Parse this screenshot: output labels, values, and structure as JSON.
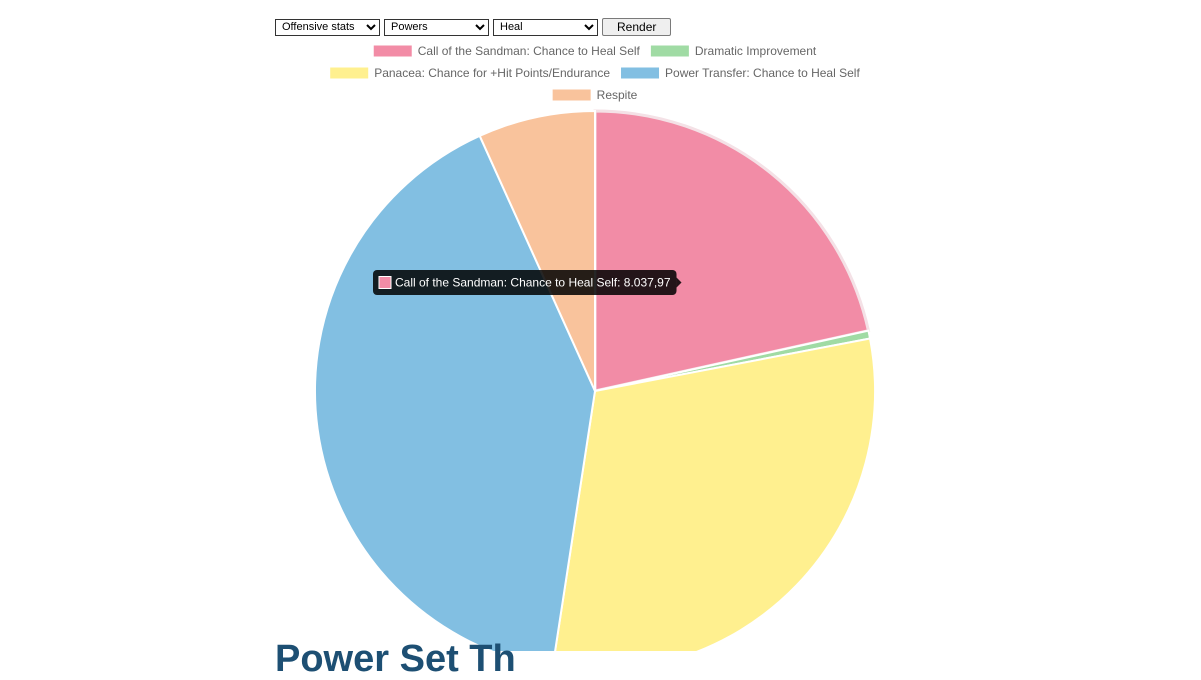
{
  "controls": {
    "stats_select": {
      "value": "Offensive stats"
    },
    "group_select": {
      "value": "Powers"
    },
    "type_select": {
      "value": "Heal"
    },
    "render_label": "Render"
  },
  "chart_data": {
    "type": "pie",
    "legend_position": "top",
    "series": [
      {
        "name": "Call of the Sandman: Chance to Heal Self",
        "value": 8037.97,
        "color": "#f28ca6"
      },
      {
        "name": "Dramatic Improvement",
        "value": 170,
        "color": "#a0dba4"
      },
      {
        "name": "Panacea: Chance for +Hit Points/Endurance",
        "value": 11350,
        "color": "#fff08f"
      },
      {
        "name": "Power Transfer: Chance to Heal Self",
        "value": 15230,
        "color": "#82bfe2"
      },
      {
        "name": "Respite",
        "value": 2520,
        "color": "#f9c39c"
      }
    ],
    "tooltip": {
      "series_index": 0,
      "text": "Call of the Sandman: Chance to Heal Self: 8.037,97"
    }
  },
  "footer": {
    "heading": "Power Set Th"
  }
}
